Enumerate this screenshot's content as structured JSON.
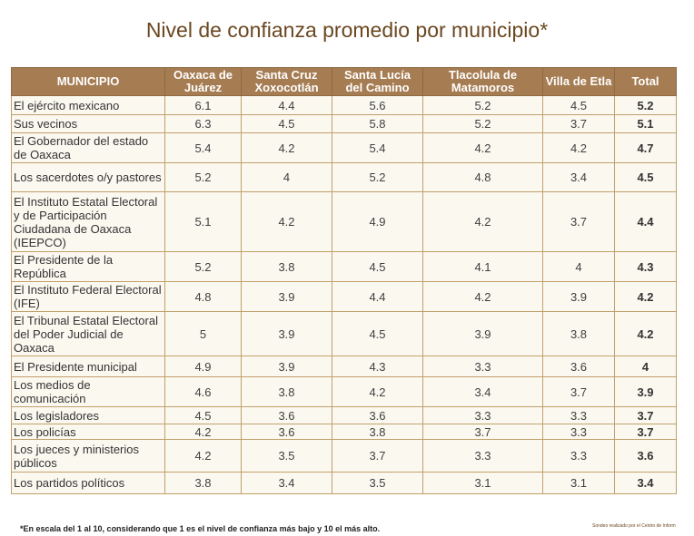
{
  "title": "Nivel de confianza promedio por municipio*",
  "headers": [
    "MUNICIPIO",
    "Oaxaca de Juárez",
    "Santa Cruz Xoxocotlán",
    "Santa Lucía del Camino",
    "Tlacolula de Matamoros",
    "Villa de Etla",
    "Total"
  ],
  "rows": [
    {
      "label": "El ejército mexicano",
      "values": [
        "6.1",
        "4.4",
        "5.6",
        "5.2",
        "4.5"
      ],
      "total": "5.2"
    },
    {
      "label": "Sus vecinos",
      "values": [
        "6.3",
        "4.5",
        "5.8",
        "5.2",
        "3.7"
      ],
      "total": "5.1"
    },
    {
      "label": "El Gobernador del estado de Oaxaca",
      "values": [
        "5.4",
        "4.2",
        "5.4",
        "4.2",
        "4.2"
      ],
      "total": "4.7"
    },
    {
      "label": "Los sacerdotes o/y pastores",
      "values": [
        "5.2",
        "4",
        "5.2",
        "4.8",
        "3.4"
      ],
      "total": "4.5"
    },
    {
      "label": "El Instituto Estatal Electoral y de Participación Ciudadana de Oaxaca (IEEPCO)",
      "values": [
        "5.1",
        "4.2",
        "4.9",
        "4.2",
        "3.7"
      ],
      "total": "4.4"
    },
    {
      "label": "El Presidente de la República",
      "values": [
        "5.2",
        "3.8",
        "4.5",
        "4.1",
        "4"
      ],
      "total": "4.3"
    },
    {
      "label": "El Instituto Federal Electoral (IFE)",
      "values": [
        "4.8",
        "3.9",
        "4.4",
        "4.2",
        "3.9"
      ],
      "total": "4.2"
    },
    {
      "label": "El Tribunal Estatal Electoral del Poder Judicial de Oaxaca",
      "values": [
        "5",
        "3.9",
        "4.5",
        "3.9",
        "3.8"
      ],
      "total": "4.2"
    },
    {
      "label": "El Presidente municipal",
      "values": [
        "4.9",
        "3.9",
        "4.3",
        "3.3",
        "3.6"
      ],
      "total": "4"
    },
    {
      "label": "Los medios de comunicación",
      "values": [
        "4.6",
        "3.8",
        "4.2",
        "3.4",
        "3.7"
      ],
      "total": "3.9"
    },
    {
      "label": "Los legisladores",
      "values": [
        "4.5",
        "3.6",
        "3.6",
        "3.3",
        "3.3"
      ],
      "total": "3.7"
    },
    {
      "label": "Los policías",
      "values": [
        "4.2",
        "3.6",
        "3.8",
        "3.7",
        "3.3"
      ],
      "total": "3.7"
    },
    {
      "label": "Los jueces y ministerios públicos",
      "values": [
        "4.2",
        "3.5",
        "3.7",
        "3.3",
        "3.3"
      ],
      "total": "3.6"
    },
    {
      "label": "Los partidos políticos",
      "values": [
        "3.8",
        "3.4",
        "3.5",
        "3.1",
        "3.1"
      ],
      "total": "3.4"
    }
  ],
  "footnote": "*En escala del 1 al 10, considerando que 1 es el nivel de confianza más bajo y 10 el más alto.",
  "source": "Sondeo realizado por el Centro de Inform",
  "colors": {
    "header_bg": "#a67c52",
    "title_text": "#6b4720",
    "cell_border": "#c1a06a",
    "cell_bg": "#fbf8f0"
  }
}
